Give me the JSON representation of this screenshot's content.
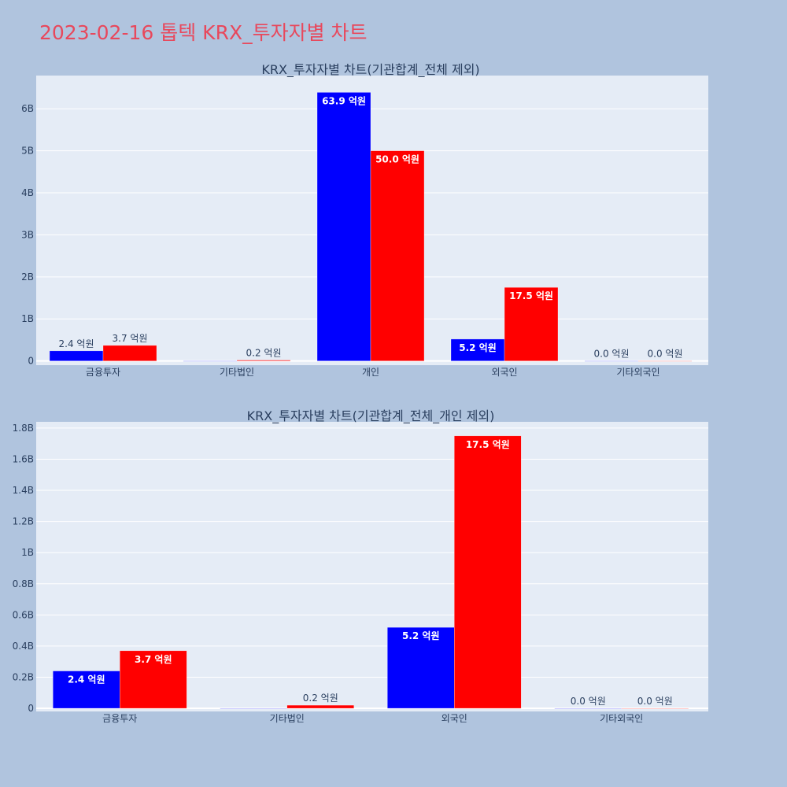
{
  "page_title": "2023-02-16 톱텍 KRX_투자자별 차트",
  "colors": {
    "background": "#b0c4de",
    "plot_bg": "#e5ecf6",
    "buy": "#0000ff",
    "sell": "#ff0000",
    "title": "#e8485c"
  },
  "chart_data": [
    {
      "type": "bar",
      "title": "KRX_투자자별 차트(기관합계_전체 제외)",
      "categories": [
        "금융투자",
        "기타법인",
        "개인",
        "외국인",
        "기타외국인"
      ],
      "series": [
        {
          "color": "#0000ff",
          "values": [
            240000000,
            0,
            6390000000,
            520000000,
            0
          ],
          "labels": [
            "2.4 억원",
            "",
            "63.9 억원",
            "5.2 억원",
            "0.0 억원"
          ]
        },
        {
          "color": "#ff0000",
          "values": [
            370000000,
            20000000,
            5000000000,
            1750000000,
            0
          ],
          "labels": [
            "3.7 억원",
            "0.2 억원",
            "50.0 억원",
            "17.5 억원",
            "0.0 억원"
          ]
        }
      ],
      "ylim": [
        -100000000,
        6790000000
      ],
      "yticks": [
        0,
        1000000000,
        2000000000,
        3000000000,
        4000000000,
        5000000000,
        6000000000
      ],
      "ytick_labels": [
        "0",
        "1B",
        "2B",
        "3B",
        "4B",
        "5B",
        "6B"
      ],
      "grid": true
    },
    {
      "type": "bar",
      "title": "KRX_투자자별 차트(기관합계_전체_개인 제외)",
      "categories": [
        "금융투자",
        "기타법인",
        "외국인",
        "기타외국인"
      ],
      "series": [
        {
          "color": "#0000ff",
          "values": [
            240000000,
            0,
            520000000,
            0
          ],
          "labels": [
            "2.4 억원",
            "",
            "5.2 억원",
            "0.0 억원"
          ]
        },
        {
          "color": "#ff0000",
          "values": [
            370000000,
            20000000,
            1750000000,
            0
          ],
          "labels": [
            "3.7 억원",
            "0.2 억원",
            "17.5 억원",
            "0.0 억원"
          ]
        }
      ],
      "ylim": [
        -20000000,
        1840000000
      ],
      "yticks": [
        0,
        200000000,
        400000000,
        600000000,
        800000000,
        1000000000,
        1200000000,
        1400000000,
        1600000000,
        1800000000
      ],
      "ytick_labels": [
        "0",
        "0.2B",
        "0.4B",
        "0.6B",
        "0.8B",
        "1B",
        "1.2B",
        "1.4B",
        "1.6B",
        "1.8B"
      ],
      "grid": true
    }
  ]
}
